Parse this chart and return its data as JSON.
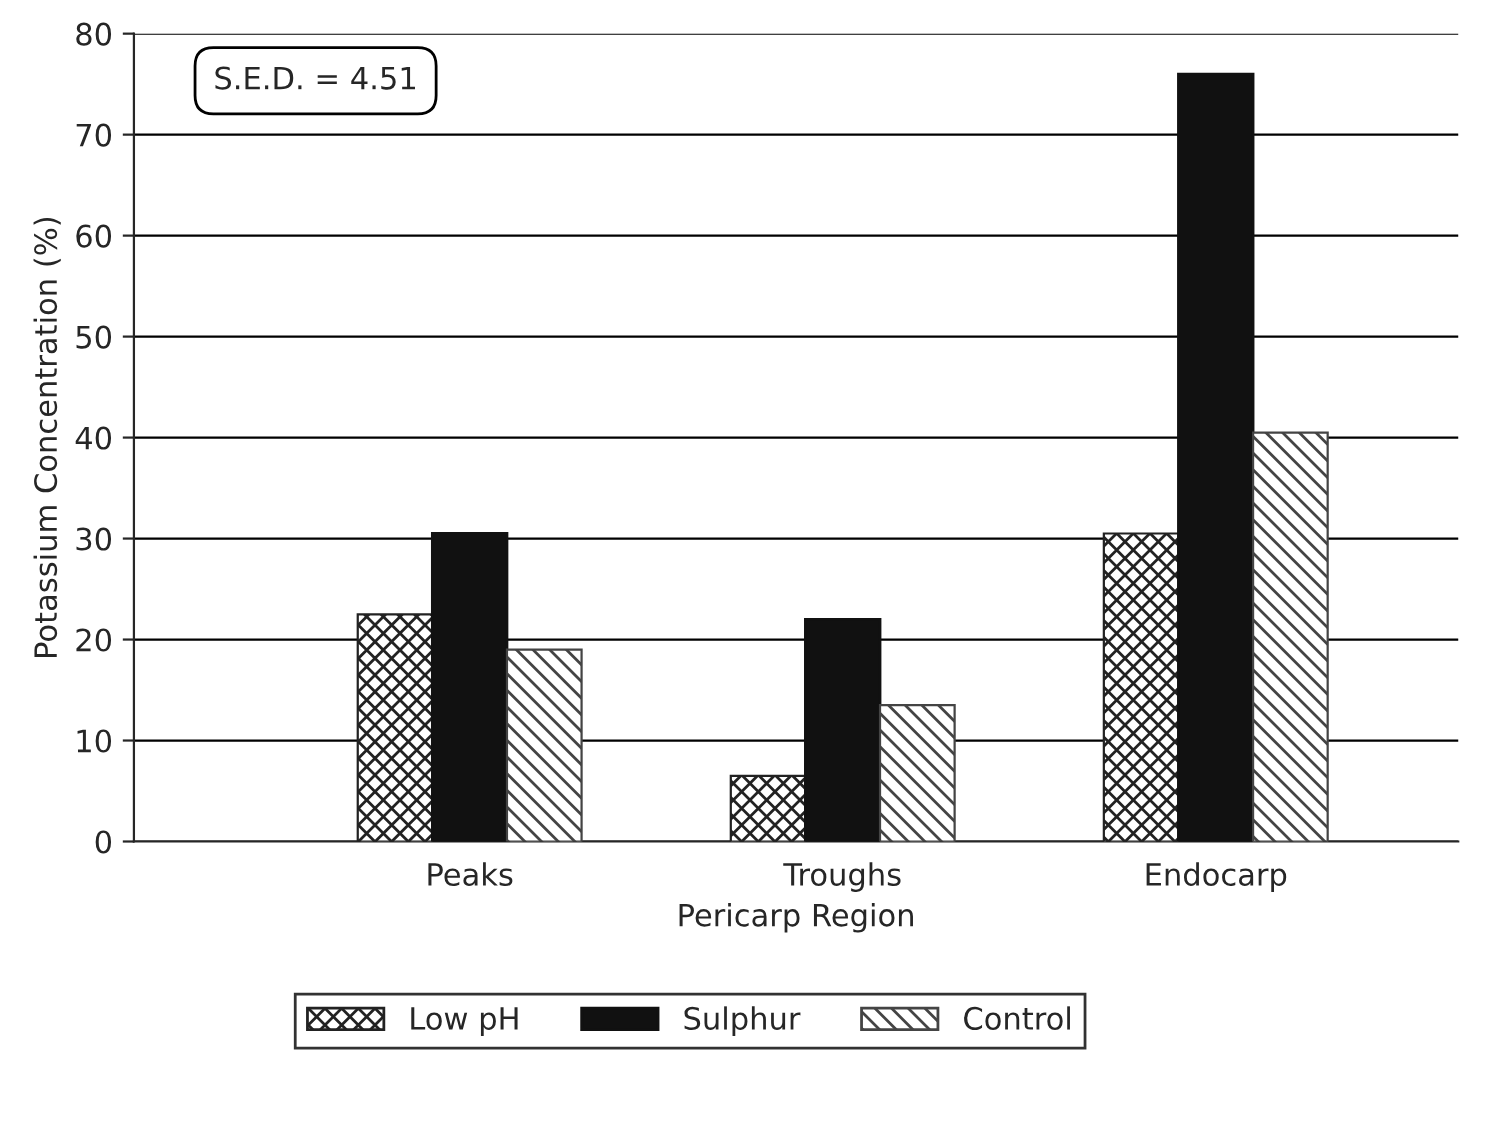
{
  "chart_data": {
    "type": "bar",
    "xlabel": "Pericarp Region",
    "ylabel": "Potassium Concentration (%)",
    "categories": [
      "Peaks",
      "Troughs",
      "Endocarp"
    ],
    "series": [
      {
        "name": "Low pH",
        "color": "#222222",
        "values": [
          22.5,
          6.5,
          30.5
        ]
      },
      {
        "name": "Sulphur",
        "color": "#111111",
        "values": [
          30.5,
          22,
          76
        ]
      },
      {
        "name": "Control",
        "color": "#444444",
        "values": [
          19,
          13.5,
          40.5
        ]
      }
    ],
    "ylim": [
      0,
      80
    ],
    "yticks": [
      0,
      10,
      20,
      30,
      40,
      50,
      60,
      70,
      80
    ],
    "grid": "y",
    "legend": "bottom",
    "annotations": [
      "S.E.D. = 4.51"
    ]
  }
}
